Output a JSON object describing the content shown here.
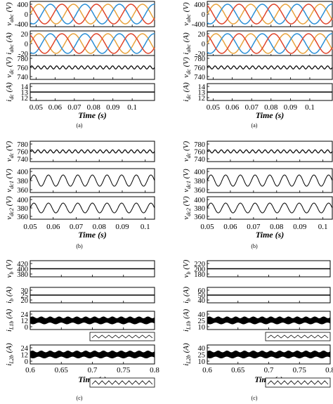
{
  "panels": [
    {
      "caption": "(a)",
      "xlabel": "Time (s)",
      "x_ticks": [
        "0.05",
        "0.06",
        "0.07",
        "0.08",
        "0.09",
        "0.1"
      ],
      "subplots": [
        {
          "label": "v_abc (V)",
          "main": "v",
          "sub": "abc",
          "unit": " (V)",
          "ticks": [
            "400",
            "0",
            "-400"
          ],
          "kind": "three-phase"
        },
        {
          "label": "i_abc (A)",
          "main": "i",
          "sub": "abc",
          "unit": " (A)",
          "ticks": [
            "20",
            "0",
            "-20"
          ],
          "kind": "three-phase"
        },
        {
          "label": "v_dc (V)",
          "main": "v",
          "sub": "dc",
          "unit": " (V)",
          "ticks": [
            "780",
            "760",
            "740"
          ],
          "kind": "ripple"
        },
        {
          "label": "i_dc (A)",
          "main": "i",
          "sub": "dc",
          "unit": " (A)",
          "ticks": [
            "14",
            "13",
            "12"
          ],
          "kind": "line"
        }
      ]
    },
    {
      "caption": "(a)",
      "xlabel": "Time (s)",
      "x_ticks": [
        "0.05",
        "0.06",
        "0.07",
        "0.08",
        "0.09",
        "0.1"
      ],
      "subplots": [
        {
          "label": "v_abc (V)",
          "main": "v",
          "sub": "abc",
          "unit": " (V)",
          "ticks": [
            "400",
            "0",
            "-400"
          ],
          "kind": "three-phase"
        },
        {
          "label": "i_abc (A)",
          "main": "i",
          "sub": "abc",
          "unit": " (A)",
          "ticks": [
            "20",
            "0",
            "-20"
          ],
          "kind": "three-phase"
        },
        {
          "label": "v_dc (V)",
          "main": "v",
          "sub": "dc",
          "unit": " (V)",
          "ticks": [
            "780",
            "760",
            "740"
          ],
          "kind": "ripple"
        },
        {
          "label": "i_dc (A)",
          "main": "i",
          "sub": "dc",
          "unit": " (A)",
          "ticks": [
            "14",
            "13",
            "12"
          ],
          "kind": "line"
        }
      ]
    },
    {
      "caption": "(b)",
      "xlabel": "Time (s)",
      "x_ticks": [
        "0.05",
        "0.06",
        "0.07",
        "0.08",
        "0.09",
        "0.1"
      ],
      "subplots": [
        {
          "label": "v_dc (V)",
          "main": "v",
          "sub": "dc",
          "unit": " (V)",
          "ticks": [
            "780",
            "760",
            "740"
          ],
          "kind": "ripple"
        },
        {
          "label": "v_dc1 (V)",
          "main": "v",
          "sub": "dc1",
          "unit": " (V)",
          "ticks": [
            "400",
            "380",
            "360"
          ],
          "kind": "sine"
        },
        {
          "label": "v_dc2 (V)",
          "main": "v",
          "sub": "dc2",
          "unit": " (V)",
          "ticks": [
            "400",
            "380",
            "360"
          ],
          "kind": "sine"
        }
      ]
    },
    {
      "caption": "(b)",
      "xlabel": "Time (s)",
      "x_ticks": [
        "0.05",
        "0.06",
        "0.07",
        "0.08",
        "0.09",
        "0.1"
      ],
      "subplots": [
        {
          "label": "v_dc (V)",
          "main": "v",
          "sub": "dc",
          "unit": " (V)",
          "ticks": [
            "780",
            "760",
            "740"
          ],
          "kind": "ripple"
        },
        {
          "label": "v_dc1 (V)",
          "main": "v",
          "sub": "dc1",
          "unit": " (V)",
          "ticks": [
            "400",
            "380",
            "360"
          ],
          "kind": "sine"
        },
        {
          "label": "v_dc2 (V)",
          "main": "v",
          "sub": "dc2",
          "unit": " (V)",
          "ticks": [
            "400",
            "380",
            "360"
          ],
          "kind": "sine"
        }
      ]
    },
    {
      "caption": "(c)",
      "xlabel": "Time (s)",
      "x_ticks": [
        "0.6",
        "0.65",
        "0.7",
        "0.75",
        "0.8"
      ],
      "subplots": [
        {
          "label": "v_b (V)",
          "main": "v",
          "sub": "b",
          "unit": " (V)",
          "ticks": [
            "420",
            "400",
            "380"
          ],
          "kind": "line"
        },
        {
          "label": "i_b (A)",
          "main": "i",
          "sub": "b",
          "unit": " (A)",
          "ticks": [
            "30",
            "25",
            "20"
          ],
          "kind": "line"
        },
        {
          "label": "i_L1b (A)",
          "main": "i",
          "sub": "L1b",
          "unit": " (A)",
          "ticks": [
            "24",
            "12",
            "0"
          ],
          "kind": "band"
        },
        {
          "label": "i_L2b (A)",
          "main": "i",
          "sub": "L2b",
          "unit": " (A)",
          "ticks": [
            "24",
            "12",
            "0"
          ],
          "kind": "band"
        }
      ]
    },
    {
      "caption": "(c)",
      "xlabel": "Time (s)",
      "x_ticks": [
        "0.6",
        "0.65",
        "0.7",
        "0.75",
        "0.8"
      ],
      "subplots": [
        {
          "label": "v_b (V)",
          "main": "v",
          "sub": "b",
          "unit": " (V)",
          "ticks": [
            "220",
            "200",
            "180"
          ],
          "kind": "line"
        },
        {
          "label": "i_b (A)",
          "main": "i",
          "sub": "b",
          "unit": " (A)",
          "ticks": [
            "60",
            "50",
            "40"
          ],
          "kind": "line"
        },
        {
          "label": "i_L1b (A)",
          "main": "i",
          "sub": "L1b",
          "unit": " (A)",
          "ticks": [
            "40",
            "25",
            "10"
          ],
          "kind": "band"
        },
        {
          "label": "i_L2b (A)",
          "main": "i",
          "sub": "L2b",
          "unit": " (A)",
          "ticks": [
            "40",
            "25",
            "10"
          ],
          "kind": "band"
        }
      ]
    }
  ],
  "colors": {
    "phase_a": "#e8a33d",
    "phase_b": "#2b8fd6",
    "phase_c": "#e0452b",
    "trace": "#000000"
  },
  "chart_data": [
    {
      "type": "line",
      "panel": "(a) left",
      "x_range": [
        0.04,
        0.105
      ],
      "series": [
        {
          "subplot": "v_abc (V)",
          "ylim": [
            -400,
            400
          ],
          "amplitude": 400,
          "frequency_hz": 50,
          "phases_deg": [
            0,
            -120,
            120
          ]
        },
        {
          "subplot": "i_abc (A)",
          "ylim": [
            -20,
            20
          ],
          "amplitude": 20,
          "frequency_hz": 50,
          "phases_deg": [
            0,
            -120,
            120
          ]
        },
        {
          "subplot": "v_dc (V)",
          "ylim": [
            740,
            780
          ],
          "mean": 760,
          "ripple_amplitude": 2
        },
        {
          "subplot": "i_dc (A)",
          "ylim": [
            12,
            14
          ],
          "mean": 13.2
        }
      ]
    },
    {
      "type": "line",
      "panel": "(a) right",
      "x_range": [
        0.04,
        0.105
      ],
      "series": [
        {
          "subplot": "v_abc (V)",
          "ylim": [
            -400,
            400
          ],
          "amplitude": 400,
          "frequency_hz": 50,
          "phases_deg": [
            0,
            -120,
            120
          ]
        },
        {
          "subplot": "i_abc (A)",
          "ylim": [
            -20,
            20
          ],
          "amplitude": 20,
          "frequency_hz": 50,
          "phases_deg": [
            0,
            -120,
            120
          ]
        },
        {
          "subplot": "v_dc (V)",
          "ylim": [
            740,
            780
          ],
          "mean": 760,
          "ripple_amplitude": 2
        },
        {
          "subplot": "i_dc (A)",
          "ylim": [
            12,
            14
          ],
          "mean": 13.2
        }
      ]
    },
    {
      "type": "line",
      "panel": "(b) left",
      "x_range": [
        0.05,
        0.105
      ],
      "series": [
        {
          "subplot": "v_dc (V)",
          "ylim": [
            740,
            780
          ],
          "mean": 760,
          "ripple_amplitude": 2.5
        },
        {
          "subplot": "v_dc1 (V)",
          "ylim": [
            360,
            400
          ],
          "mean": 380,
          "amplitude": 7,
          "frequency_hz": 150
        },
        {
          "subplot": "v_dc2 (V)",
          "ylim": [
            360,
            400
          ],
          "mean": 380,
          "amplitude": 7,
          "frequency_hz": 150
        }
      ]
    },
    {
      "type": "line",
      "panel": "(b) right",
      "x_range": [
        0.05,
        0.105
      ],
      "series": [
        {
          "subplot": "v_dc (V)",
          "ylim": [
            740,
            780
          ],
          "mean": 760,
          "ripple_amplitude": 2.5
        },
        {
          "subplot": "v_dc1 (V)",
          "ylim": [
            360,
            400
          ],
          "mean": 380,
          "amplitude": 7,
          "frequency_hz": 150
        },
        {
          "subplot": "v_dc2 (V)",
          "ylim": [
            360,
            400
          ],
          "mean": 380,
          "amplitude": 7,
          "frequency_hz": 150
        }
      ]
    },
    {
      "type": "line",
      "panel": "(c) left",
      "x_range": [
        0.6,
        0.8
      ],
      "series": [
        {
          "subplot": "v_b (V)",
          "ylim": [
            380,
            420
          ],
          "mean": 400
        },
        {
          "subplot": "i_b (A)",
          "ylim": [
            20,
            30
          ],
          "mean": 25
        },
        {
          "subplot": "i_L1b (A)",
          "ylim": [
            0,
            24
          ],
          "mean": 12.5,
          "ripple_peak_to_peak": 5
        },
        {
          "subplot": "i_L2b (A)",
          "ylim": [
            0,
            24
          ],
          "mean": 12.5,
          "ripple_peak_to_peak": 5
        }
      ]
    },
    {
      "type": "line",
      "panel": "(c) right",
      "x_range": [
        0.6,
        0.8
      ],
      "series": [
        {
          "subplot": "v_b (V)",
          "ylim": [
            180,
            220
          ],
          "mean": 200
        },
        {
          "subplot": "i_b (A)",
          "ylim": [
            40,
            60
          ],
          "mean": 50
        },
        {
          "subplot": "i_L1b (A)",
          "ylim": [
            10,
            40
          ],
          "mean": 27,
          "ripple_peak_to_peak": 6
        },
        {
          "subplot": "i_L2b (A)",
          "ylim": [
            10,
            40
          ],
          "mean": 27,
          "ripple_peak_to_peak": 6
        }
      ]
    }
  ]
}
